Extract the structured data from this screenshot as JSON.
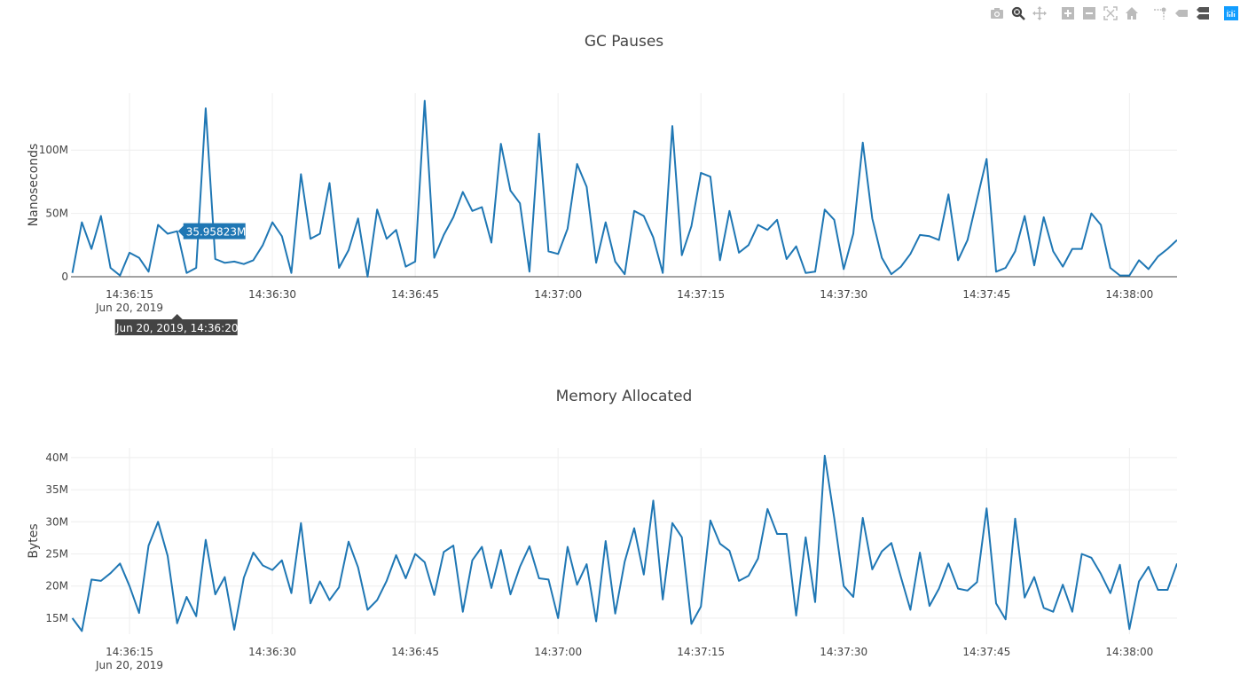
{
  "modebar": {
    "buttons": [
      {
        "icon": "camera-icon",
        "label": "Download plot as a png",
        "active": false
      },
      {
        "icon": "zoom-icon",
        "label": "Zoom",
        "active": true
      },
      {
        "icon": "pan-icon",
        "label": "Pan",
        "active": false
      },
      {
        "icon": "zoom-in-icon",
        "label": "Zoom in",
        "active": false
      },
      {
        "icon": "zoom-out-icon",
        "label": "Zoom out",
        "active": false
      },
      {
        "icon": "autoscale-icon",
        "label": "Autoscale",
        "active": false
      },
      {
        "icon": "home-icon",
        "label": "Reset axes",
        "active": false
      },
      {
        "icon": "spikelines-icon",
        "label": "Toggle Spike Lines",
        "active": false
      },
      {
        "icon": "hover-closest-icon",
        "label": "Show closest data on hover",
        "active": false
      },
      {
        "icon": "hover-compare-icon",
        "label": "Compare data on hover",
        "active": true
      },
      {
        "icon": "plotly-logo-icon",
        "label": "Produced with Plotly",
        "active": false
      }
    ]
  },
  "colors": {
    "line": "#1f77b4",
    "grid": "#eeeeee",
    "zeroline": "#444444",
    "text": "#444444",
    "hover_x_bg": "#444444"
  },
  "hover": {
    "x_label": "Jun 20, 2019, 14:36:20",
    "y_label": "35.95823M",
    "point_index": 11
  },
  "chart_data": [
    {
      "type": "line",
      "title": "GC Pauses",
      "ylabel": "Nanoseconds",
      "xlabel": "",
      "date_label": "Jun 20, 2019",
      "xlim": [
        "14:36:08.85",
        "14:38:05"
      ],
      "ylim": [
        0,
        145000000.0
      ],
      "grid": true,
      "xticks": [
        "14:36:15",
        "14:36:30",
        "14:36:45",
        "14:37:00",
        "14:37:15",
        "14:37:30",
        "14:37:45",
        "14:38:00"
      ],
      "yticks": [
        {
          "value": 0,
          "label": "0"
        },
        {
          "value": 50000000.0,
          "label": "50M"
        },
        {
          "value": 100000000.0,
          "label": "100M"
        }
      ],
      "values": [
        3000000.0,
        43000000.0,
        22000000.0,
        48000000.0,
        7000000.0,
        1000000.0,
        19000000.0,
        15000000.0,
        4000000.0,
        41000000.0,
        34000000.0,
        35958230.0,
        3000000.0,
        7000000.0,
        133000000.0,
        14000000.0,
        11000000.0,
        12000000.0,
        10000000.0,
        13000000.0,
        25000000.0,
        43000000.0,
        32000000.0,
        3000000.0,
        81000000.0,
        30000000.0,
        34000000.0,
        74000000.0,
        7000000.0,
        21000000.0,
        46000000.0,
        0,
        53000000.0,
        30000000.0,
        37000000.0,
        8000000.0,
        12000000.0,
        139000000.0,
        15000000.0,
        33000000.0,
        47000000.0,
        67000000.0,
        52000000.0,
        55000000.0,
        27000000.0,
        105000000.0,
        68000000.0,
        58000000.0,
        4000000.0,
        113000000.0,
        20000000.0,
        18000000.0,
        38000000.0,
        89000000.0,
        71000000.0,
        11000000.0,
        43000000.0,
        12000000.0,
        2000000.0,
        52000000.0,
        48000000.0,
        31000000.0,
        3000000.0,
        119000000.0,
        17000000.0,
        40000000.0,
        82000000.0,
        79000000.0,
        13000000.0,
        52000000.0,
        19000000.0,
        25000000.0,
        41000000.0,
        37000000.0,
        45000000.0,
        14000000.0,
        24000000.0,
        3000000.0,
        4000000.0,
        53000000.0,
        45000000.0,
        6000000.0,
        34000000.0,
        106000000.0,
        46000000.0,
        15000000.0,
        2000000.0,
        8000000.0,
        18000000.0,
        33000000.0,
        32000000.0,
        29000000.0,
        65000000.0,
        13000000.0,
        29000000.0,
        61000000.0,
        93000000.0,
        4000000.0,
        7000000.0,
        20000000.0,
        48000000.0,
        9000000.0,
        47000000.0,
        20000000.0,
        8000000.0,
        22000000.0,
        22000000.0,
        50000000.0,
        41000000.0,
        7000000.0,
        1000000.0,
        1000000.0,
        13000000.0,
        6000000.0,
        16000000.0,
        22000000.0,
        29000000.0
      ]
    },
    {
      "type": "line",
      "title": "Memory Allocated",
      "ylabel": "Bytes",
      "xlabel": "",
      "date_label": "Jun 20, 2019",
      "xlim": [
        "14:36:08.85",
        "14:38:05"
      ],
      "ylim": [
        12500000.0,
        41500000.0
      ],
      "grid": true,
      "xticks": [
        "14:36:15",
        "14:36:30",
        "14:36:45",
        "14:37:00",
        "14:37:15",
        "14:37:30",
        "14:37:45",
        "14:38:00"
      ],
      "yticks": [
        {
          "value": 15000000.0,
          "label": "15M"
        },
        {
          "value": 20000000.0,
          "label": "20M"
        },
        {
          "value": 25000000.0,
          "label": "25M"
        },
        {
          "value": 30000000.0,
          "label": "30M"
        },
        {
          "value": 35000000.0,
          "label": "35M"
        },
        {
          "value": 40000000.0,
          "label": "40M"
        }
      ],
      "values": [
        15000000.0,
        13000000.0,
        21000000.0,
        20800000.0,
        22000000.0,
        23500000.0,
        20000000.0,
        15800000.0,
        26300000.0,
        30000000.0,
        24700000.0,
        14200000.0,
        18300000.0,
        15300000.0,
        27200000.0,
        18700000.0,
        21400000.0,
        13200000.0,
        21300000.0,
        25200000.0,
        23200000.0,
        22500000.0,
        24000000.0,
        18900000.0,
        29800000.0,
        17300000.0,
        20700000.0,
        17800000.0,
        19800000.0,
        26900000.0,
        22900000.0,
        16300000.0,
        17800000.0,
        20800000.0,
        24800000.0,
        21200000.0,
        25000000.0,
        23700000.0,
        18600000.0,
        25300000.0,
        26300000.0,
        16000000.0,
        24000000.0,
        26100000.0,
        19700000.0,
        25600000.0,
        18700000.0,
        23000000.0,
        26200000.0,
        21200000.0,
        21000000.0,
        15000000.0,
        26100000.0,
        20200000.0,
        23400000.0,
        14500000.0,
        27000000.0,
        15700000.0,
        23800000.0,
        29000000.0,
        21800000.0,
        33300000.0,
        17900000.0,
        29800000.0,
        27600000.0,
        14100000.0,
        16800000.0,
        30200000.0,
        26600000.0,
        25500000.0,
        20800000.0,
        21600000.0,
        24300000.0,
        32000000.0,
        28100000.0,
        28100000.0,
        15400000.0,
        27600000.0,
        17500000.0,
        40300000.0,
        30600000.0,
        20000000.0,
        18300000.0,
        30600000.0,
        22600000.0,
        25400000.0,
        26700000.0,
        21400000.0,
        16300000.0,
        25200000.0,
        16900000.0,
        19600000.0,
        23500000.0,
        19600000.0,
        19300000.0,
        20600000.0,
        32100000.0,
        17300000.0,
        14800000.0,
        30500000.0,
        18200000.0,
        21400000.0,
        16600000.0,
        16000000.0,
        20200000.0,
        16000000.0,
        25000000.0,
        24400000.0,
        21900000.0,
        18900000.0,
        23300000.0,
        13300000.0,
        20700000.0,
        23000000.0,
        19400000.0,
        19400000.0,
        23500000.0
      ]
    }
  ],
  "x": [
    "14:36:09",
    "14:36:10",
    "14:36:11",
    "14:36:12",
    "14:36:13",
    "14:36:14",
    "14:36:15",
    "14:36:16",
    "14:36:17",
    "14:36:18",
    "14:36:19",
    "14:36:20",
    "14:36:21",
    "14:36:22",
    "14:36:23",
    "14:36:24",
    "14:36:25",
    "14:36:26",
    "14:36:27",
    "14:36:28",
    "14:36:29",
    "14:36:30",
    "14:36:31",
    "14:36:32",
    "14:36:33",
    "14:36:34",
    "14:36:35",
    "14:36:36",
    "14:36:37",
    "14:36:38",
    "14:36:39",
    "14:36:40",
    "14:36:41",
    "14:36:42",
    "14:36:43",
    "14:36:44",
    "14:36:45",
    "14:36:46",
    "14:36:47",
    "14:36:48",
    "14:36:49",
    "14:36:50",
    "14:36:51",
    "14:36:52",
    "14:36:53",
    "14:36:54",
    "14:36:55",
    "14:36:56",
    "14:36:57",
    "14:36:58",
    "14:36:59",
    "14:37:00",
    "14:37:01",
    "14:37:02",
    "14:37:03",
    "14:37:04",
    "14:37:05",
    "14:37:06",
    "14:37:07",
    "14:37:08",
    "14:37:09",
    "14:37:10",
    "14:37:11",
    "14:37:12",
    "14:37:13",
    "14:37:14",
    "14:37:15",
    "14:37:16",
    "14:37:17",
    "14:37:18",
    "14:37:19",
    "14:37:20",
    "14:37:21",
    "14:37:22",
    "14:37:23",
    "14:37:24",
    "14:37:25",
    "14:37:26",
    "14:37:27",
    "14:37:28",
    "14:37:29",
    "14:37:30",
    "14:37:31",
    "14:37:32",
    "14:37:33",
    "14:37:34",
    "14:37:35",
    "14:37:36",
    "14:37:37",
    "14:37:38",
    "14:37:39",
    "14:37:40",
    "14:37:41",
    "14:37:42",
    "14:37:43",
    "14:37:44",
    "14:37:45",
    "14:37:46",
    "14:37:47",
    "14:37:48",
    "14:37:49",
    "14:37:50",
    "14:37:51",
    "14:37:52",
    "14:37:53",
    "14:37:54",
    "14:37:55",
    "14:37:56",
    "14:37:57",
    "14:37:58",
    "14:37:59",
    "14:38:00",
    "14:38:01",
    "14:38:02",
    "14:38:03",
    "14:38:04",
    "14:38:05"
  ]
}
